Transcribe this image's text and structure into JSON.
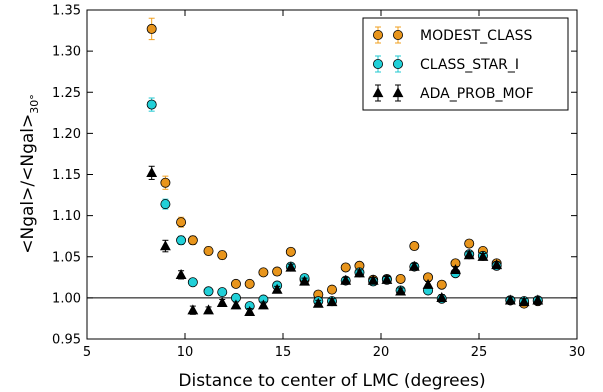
{
  "chart_data": {
    "type": "scatter",
    "xlabel": "Distance to center of LMC (degrees)",
    "ylabel_main": "<Ngal>/<Ngal>",
    "ylabel_sub": "30°",
    "xlim": [
      5,
      30
    ],
    "ylim": [
      0.95,
      1.35
    ],
    "xticks": [
      5,
      10,
      15,
      20,
      25,
      30
    ],
    "yticks": [
      0.95,
      1.0,
      1.05,
      1.1,
      1.15,
      1.2,
      1.25,
      1.3,
      1.35
    ],
    "ytick_labels": [
      "0.95",
      "1.00",
      "1.05",
      "1.10",
      "1.15",
      "1.20",
      "1.25",
      "1.30",
      "1.35"
    ],
    "hline": 1.0,
    "grid": false,
    "legend_position": "top-right",
    "series": [
      {
        "name": "MODEST_CLASS",
        "marker": "circle",
        "color": "#e8951c",
        "error_color": "#f0a020",
        "x": [
          8.3,
          9.0,
          9.8,
          10.4,
          11.2,
          11.9,
          12.6,
          13.3,
          14.0,
          14.7,
          15.4,
          16.1,
          16.8,
          17.5,
          18.2,
          18.9,
          19.6,
          20.3,
          21.0,
          21.7,
          22.4,
          23.1,
          23.8,
          24.5,
          25.2,
          25.9,
          26.6,
          27.3,
          28.0
        ],
        "y": [
          1.327,
          1.14,
          1.092,
          1.07,
          1.057,
          1.052,
          1.017,
          1.017,
          1.031,
          1.032,
          1.056,
          1.022,
          1.004,
          1.01,
          1.037,
          1.039,
          1.022,
          1.023,
          1.023,
          1.063,
          1.025,
          1.016,
          1.042,
          1.066,
          1.057,
          1.042,
          0.997,
          0.993,
          0.996
        ],
        "err": [
          0.013,
          0.008,
          0.006,
          0.005,
          0.005,
          0.005,
          0.004,
          0.004,
          0.004,
          0.004,
          0.004,
          0.004,
          0.004,
          0.004,
          0.004,
          0.004,
          0.004,
          0.004,
          0.004,
          0.004,
          0.004,
          0.004,
          0.004,
          0.004,
          0.004,
          0.004,
          0.004,
          0.004,
          0.004
        ]
      },
      {
        "name": "CLASS_STAR_I",
        "marker": "circle",
        "color": "#21d0d8",
        "error_color": "#21c8d0",
        "x": [
          8.3,
          9.0,
          9.8,
          10.4,
          11.2,
          11.9,
          12.6,
          13.3,
          14.0,
          14.7,
          15.4,
          16.1,
          16.8,
          17.5,
          18.2,
          18.9,
          19.6,
          20.3,
          21.0,
          21.7,
          22.4,
          23.1,
          23.8,
          24.5,
          25.2,
          25.9,
          26.6,
          27.3,
          28.0
        ],
        "y": [
          1.235,
          1.114,
          1.07,
          1.019,
          1.008,
          1.007,
          1.0,
          0.99,
          0.998,
          1.015,
          1.038,
          1.024,
          0.996,
          0.996,
          1.021,
          1.031,
          1.02,
          1.022,
          1.009,
          1.038,
          1.009,
          0.999,
          1.03,
          1.053,
          1.051,
          1.039,
          0.997,
          0.996,
          0.997
        ],
        "err": [
          0.008,
          0.006,
          0.005,
          0.004,
          0.004,
          0.004,
          0.004,
          0.004,
          0.004,
          0.004,
          0.004,
          0.004,
          0.004,
          0.004,
          0.004,
          0.004,
          0.004,
          0.004,
          0.004,
          0.004,
          0.004,
          0.004,
          0.004,
          0.004,
          0.004,
          0.004,
          0.004,
          0.004,
          0.004
        ]
      },
      {
        "name": "ADA_PROB_MOF",
        "marker": "triangle",
        "color": "#000000",
        "error_color": "#000000",
        "x": [
          8.3,
          9.0,
          9.8,
          10.4,
          11.2,
          11.9,
          12.6,
          13.3,
          14.0,
          14.7,
          15.4,
          16.1,
          16.8,
          17.5,
          18.2,
          18.9,
          19.6,
          20.3,
          21.0,
          21.7,
          22.4,
          23.1,
          23.8,
          24.5,
          25.2,
          25.9,
          26.6,
          27.3,
          28.0
        ],
        "y": [
          1.152,
          1.063,
          1.028,
          0.985,
          0.985,
          0.994,
          0.991,
          0.983,
          0.991,
          1.01,
          1.037,
          1.02,
          0.993,
          0.995,
          1.021,
          1.03,
          1.021,
          1.022,
          1.008,
          1.038,
          1.016,
          1.0,
          1.034,
          1.052,
          1.05,
          1.04,
          0.997,
          0.995,
          0.997
        ],
        "err": [
          0.008,
          0.007,
          0.005,
          0.005,
          0.004,
          0.004,
          0.004,
          0.004,
          0.004,
          0.004,
          0.004,
          0.004,
          0.004,
          0.004,
          0.004,
          0.004,
          0.004,
          0.004,
          0.004,
          0.004,
          0.004,
          0.004,
          0.004,
          0.004,
          0.004,
          0.004,
          0.004,
          0.004,
          0.004
        ]
      }
    ]
  }
}
